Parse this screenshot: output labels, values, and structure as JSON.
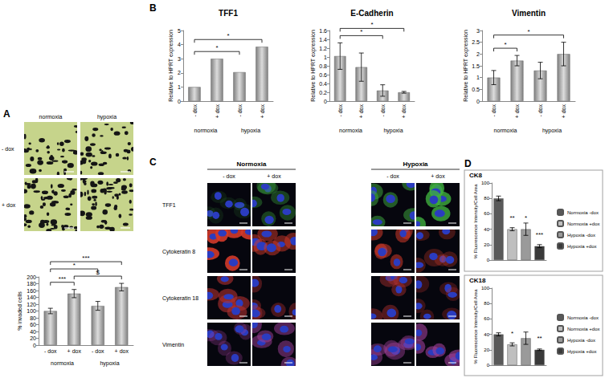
{
  "figure": {
    "panel_labels": [
      "A",
      "B",
      "C",
      "D"
    ],
    "panel_a_images": {
      "columns": [
        "normoxia",
        "hypoxia"
      ],
      "rows": [
        "- dox",
        "+ dox"
      ]
    },
    "panel_c_images": {
      "groups": [
        "Normoxia",
        "Hypoxia"
      ],
      "columns": [
        "- dox",
        "+ dox"
      ],
      "rows": [
        "TFF1",
        "Cytokeratin 8",
        "Cytokeratin 18",
        "Vimentin"
      ]
    }
  },
  "chart_data": [
    {
      "type": "bar",
      "ylabel": "% invaded cells",
      "categories": [
        "- dox",
        "+ dox",
        "- dox",
        "+ dox"
      ],
      "groups": [
        "normoxia",
        "hypoxia"
      ],
      "values": [
        100,
        151,
        115,
        170
      ],
      "errors": [
        8,
        12,
        13,
        11
      ],
      "color": "#808080",
      "ylim": [
        0,
        200
      ],
      "yticks": [
        0,
        20,
        40,
        60,
        80,
        100,
        120,
        140,
        160,
        180,
        200
      ],
      "grid": false,
      "brackets": [
        {
          "between": [
            0,
            1
          ],
          "text": "***"
        },
        {
          "between": [
            1,
            3
          ],
          "text": "$"
        },
        {
          "between": [
            0,
            2
          ],
          "text": "*"
        },
        {
          "between": [
            0,
            3
          ],
          "text": "***"
        }
      ]
    },
    {
      "type": "bar",
      "title": "TFF1",
      "ylabel": "Relative to HPRT expression",
      "categories": [
        "- dox",
        "+ dox",
        "- dox",
        "+ dox"
      ],
      "groups": [
        "normoxia",
        "hypoxia"
      ],
      "values": [
        1,
        3,
        2.05,
        3.85
      ],
      "color": "#808080",
      "ylim": [
        0,
        5
      ],
      "yticks": [
        0,
        1,
        2,
        3,
        4,
        5
      ],
      "grid": false,
      "brackets": [
        {
          "between": [
            0,
            2
          ],
          "text": "*"
        },
        {
          "between": [
            0,
            3
          ],
          "text": "*"
        }
      ]
    },
    {
      "type": "bar",
      "title": "E-Cadherin",
      "ylabel": "Relative to HPRT expression",
      "categories": [
        "- dox",
        "+ dox",
        "- dox",
        "+ dox"
      ],
      "groups": [
        "normoxia",
        "hypoxia"
      ],
      "values": [
        1.02,
        0.77,
        0.24,
        0.2
      ],
      "errors": [
        0.3,
        0.32,
        0.13,
        0.02
      ],
      "color": "#808080",
      "ylim": [
        0,
        1.6
      ],
      "yticks": [
        0,
        0.2,
        0.4,
        0.6,
        0.8,
        1,
        1.2,
        1.4,
        1.6
      ],
      "grid": false,
      "brackets": [
        {
          "between": [
            0,
            2
          ],
          "text": "*"
        },
        {
          "between": [
            0,
            3
          ],
          "text": "*"
        }
      ]
    },
    {
      "type": "bar",
      "title": "Vimentin",
      "ylabel": "Relative to HPRT expression",
      "categories": [
        "- dox",
        "+ dox",
        "- dox",
        "+ dox"
      ],
      "groups": [
        "normoxia",
        "hypoxia"
      ],
      "values": [
        1,
        1.72,
        1.3,
        2.0
      ],
      "errors": [
        0.3,
        0.22,
        0.35,
        0.5
      ],
      "color": "#808080",
      "ylim": [
        0,
        3
      ],
      "yticks": [
        0,
        0.5,
        1,
        1.5,
        2,
        2.5,
        3
      ],
      "grid": false,
      "brackets": [
        {
          "between": [
            0,
            1
          ],
          "text": "*"
        },
        {
          "between": [
            0,
            3
          ],
          "text": "*"
        }
      ]
    },
    {
      "type": "bar",
      "title": "CK8",
      "ylabel": "% Fluorescence Intensity/Cell Area",
      "categories": [
        null,
        null,
        null,
        null
      ],
      "series": [
        {
          "name": "Normoxia -dox",
          "color": "#595959",
          "values": [
            80,
            null,
            null,
            null
          ],
          "errors": [
            3,
            null,
            null,
            null
          ]
        },
        {
          "name": "Normoxia +dox",
          "color": "#bfbfbf",
          "values": [
            null,
            40,
            null,
            null
          ],
          "errors": [
            null,
            2,
            null,
            null
          ],
          "significance": "**"
        },
        {
          "name": "Hypoxia -dox",
          "color": "#9a9a9a",
          "values": [
            null,
            null,
            40,
            null
          ],
          "errors": [
            null,
            null,
            8,
            null
          ],
          "significance": "*"
        },
        {
          "name": "Hypoxia +dox",
          "color": "#3a3a3a",
          "values": [
            null,
            null,
            null,
            18
          ],
          "errors": [
            null,
            null,
            null,
            2
          ],
          "significance": "***"
        }
      ],
      "ylim": [
        0,
        100
      ],
      "yticks": [
        0,
        20,
        40,
        60,
        80,
        100
      ],
      "grid": false,
      "legend": "right",
      "tick_labels": "y"
    },
    {
      "type": "bar",
      "title": "CK18",
      "ylabel": "% Fluorescence Intensity/Cell Area",
      "categories": [
        null,
        null,
        null,
        null
      ],
      "series": [
        {
          "name": "Normoxia -dox",
          "color": "#595959",
          "values": [
            40,
            null,
            null,
            null
          ],
          "errors": [
            2,
            null,
            null,
            null
          ]
        },
        {
          "name": "Normoxia +dox",
          "color": "#bfbfbf",
          "values": [
            null,
            27,
            null,
            null
          ],
          "errors": [
            null,
            2,
            null,
            null
          ],
          "significance": "*"
        },
        {
          "name": "Hypoxia -dox",
          "color": "#9a9a9a",
          "values": [
            null,
            null,
            35,
            null
          ],
          "errors": [
            null,
            null,
            8,
            null
          ]
        },
        {
          "name": "Hypoxia +dox",
          "color": "#3a3a3a",
          "values": [
            null,
            null,
            null,
            20
          ],
          "errors": [
            null,
            null,
            null,
            1
          ],
          "significance": "**"
        }
      ],
      "ylim": [
        0,
        100
      ],
      "yticks": [
        0,
        20,
        40,
        60,
        80,
        100
      ],
      "grid": false,
      "legend": "right",
      "tick_labels": "y"
    }
  ]
}
